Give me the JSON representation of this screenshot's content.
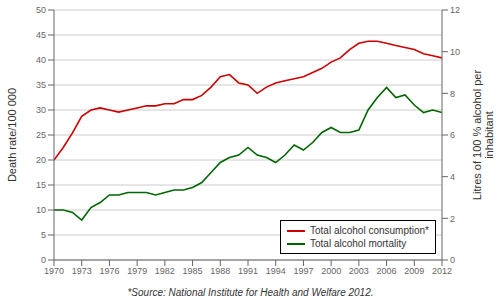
{
  "chart_data": {
    "type": "line",
    "x": [
      1970,
      1971,
      1972,
      1973,
      1974,
      1975,
      1976,
      1977,
      1978,
      1979,
      1980,
      1981,
      1982,
      1983,
      1984,
      1985,
      1986,
      1987,
      1988,
      1989,
      1990,
      1991,
      1992,
      1993,
      1994,
      1995,
      1996,
      1997,
      1998,
      1999,
      2000,
      2001,
      2002,
      2003,
      2004,
      2005,
      2006,
      2007,
      2008,
      2009,
      2010,
      2011,
      2012
    ],
    "xlim": [
      1970,
      2012
    ],
    "xticks": [
      1970,
      1973,
      1976,
      1979,
      1982,
      1985,
      1988,
      1991,
      1994,
      1997,
      2000,
      2003,
      2006,
      2009,
      2012
    ],
    "ylim": [
      0,
      50
    ],
    "yticks": [
      0,
      5,
      10,
      15,
      20,
      25,
      30,
      35,
      40,
      45,
      50
    ],
    "y2lim": [
      0,
      12
    ],
    "y2ticks": [
      0,
      2,
      4,
      6,
      8,
      10,
      12
    ],
    "ylabel": "Death rate/100 000",
    "y2label": "Litres of 100 % alcohol per\ninhabitant",
    "series": [
      {
        "name": "Total alcohol consumption*",
        "color": "#cc0000",
        "axis": "y2",
        "values": [
          4.8,
          5.4,
          6.1,
          6.9,
          7.2,
          7.3,
          7.2,
          7.1,
          7.2,
          7.3,
          7.4,
          7.4,
          7.5,
          7.5,
          7.7,
          7.7,
          7.9,
          8.3,
          8.8,
          8.9,
          8.5,
          8.4,
          8.0,
          8.3,
          8.5,
          8.6,
          8.7,
          8.8,
          9.0,
          9.2,
          9.5,
          9.7,
          10.1,
          10.4,
          10.5,
          10.5,
          10.4,
          10.3,
          10.2,
          10.1,
          9.9,
          9.8,
          9.7
        ]
      },
      {
        "name": "Total alcohol mortality",
        "color": "#006600",
        "values": [
          10.0,
          10.0,
          9.5,
          8.0,
          10.5,
          11.5,
          13.0,
          13.0,
          13.5,
          13.5,
          13.5,
          13.0,
          13.5,
          14.0,
          14.0,
          14.5,
          15.5,
          17.5,
          19.5,
          20.5,
          21.0,
          22.5,
          21.0,
          20.5,
          19.5,
          21.0,
          23.0,
          22.0,
          23.5,
          25.5,
          26.5,
          25.5,
          25.5,
          26.0,
          30.0,
          32.5,
          34.5,
          32.5,
          33.0,
          31.0,
          29.5,
          30.0,
          29.5
        ]
      }
    ],
    "grid": true,
    "legend": "lower right",
    "annotations": [
      "*Source: National Institute for Health and Welfare 2012."
    ]
  }
}
